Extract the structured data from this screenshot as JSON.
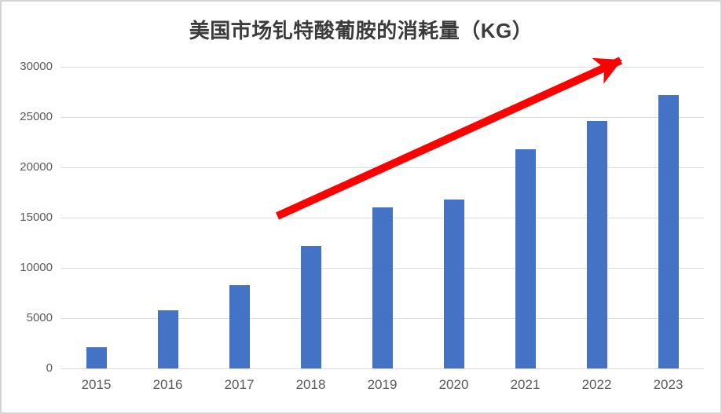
{
  "chart_data": {
    "type": "bar",
    "title": "美国市场钆特酸葡胺的消耗量（KG）",
    "categories": [
      "2015",
      "2016",
      "2017",
      "2018",
      "2019",
      "2020",
      "2021",
      "2022",
      "2023"
    ],
    "values": [
      2100,
      5800,
      8300,
      12200,
      16000,
      16800,
      21800,
      24600,
      27200
    ],
    "xlabel": "",
    "ylabel": "",
    "ylim": [
      0,
      30000
    ],
    "yticks": [
      0,
      5000,
      10000,
      15000,
      20000,
      25000,
      30000
    ],
    "grid": true,
    "legend": false,
    "bar_color": "#4472C4",
    "gridline_color": "#dcdcdc",
    "tick_label_color": "#595959",
    "title_color": "#3b3b3b",
    "annotation": {
      "type": "arrow",
      "color": "#FF0000",
      "x1": 351,
      "y1": 273,
      "x2": 788,
      "y2": 75,
      "stroke_width": 10
    }
  }
}
